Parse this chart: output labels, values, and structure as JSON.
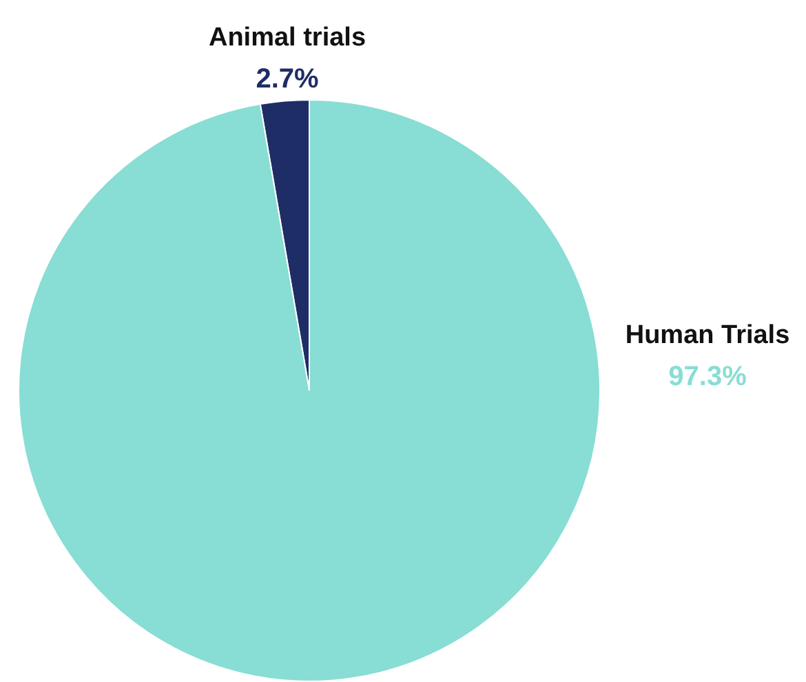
{
  "chart_data": {
    "type": "pie",
    "categories": [
      "Animal trials",
      "Human Trials"
    ],
    "values": [
      2.7,
      97.3
    ],
    "colors": [
      "#1f2d66",
      "#88ddd4"
    ],
    "value_labels": [
      "2.7%",
      "97.3%"
    ]
  }
}
